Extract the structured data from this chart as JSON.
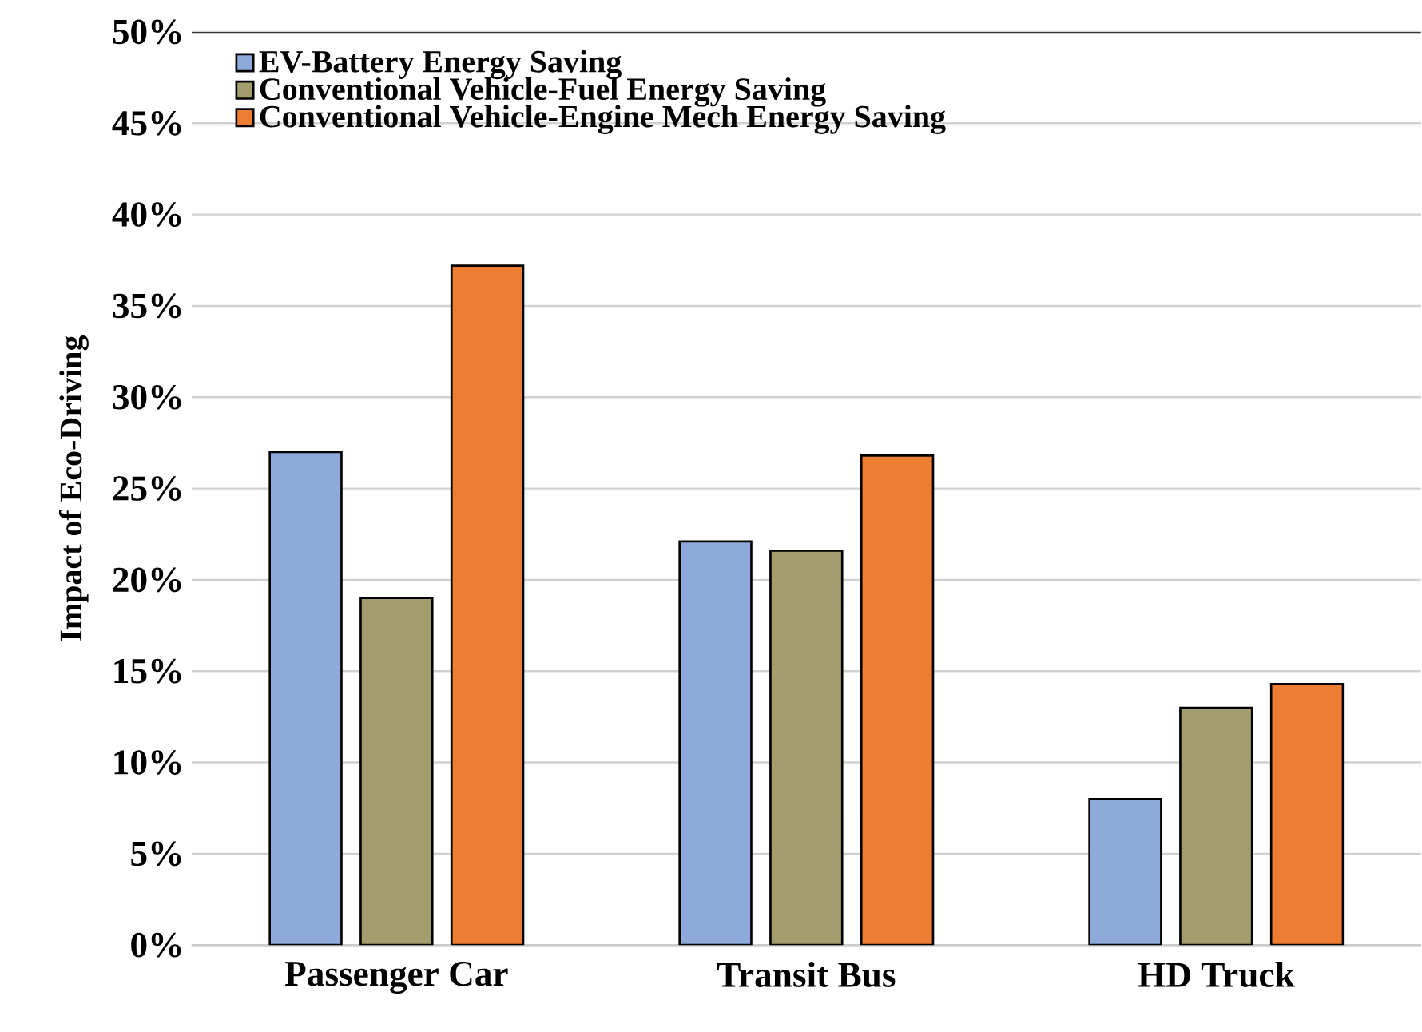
{
  "chart_data": {
    "type": "bar",
    "ylabel": "Impact of Eco-Driving",
    "categories": [
      "Passenger Car",
      "Transit Bus",
      "HD Truck"
    ],
    "series": [
      {
        "name": "EV-Battery Energy Saving",
        "color": "#8eaadb",
        "values": [
          27.0,
          22.1,
          8.0
        ]
      },
      {
        "name": "Conventional Vehicle-Fuel Energy Saving",
        "color": "#a39c6c",
        "values": [
          19.0,
          21.6,
          13.0
        ]
      },
      {
        "name": "Conventional Vehicle-Engine Mech  Energy Saving",
        "color": "#ed7d31",
        "values": [
          37.2,
          26.8,
          14.3
        ]
      }
    ],
    "ylim": [
      0,
      50
    ],
    "yticks": [
      {
        "value": 0,
        "label": "0%"
      },
      {
        "value": 5,
        "label": "5%"
      },
      {
        "value": 10,
        "label": "10%"
      },
      {
        "value": 15,
        "label": "15%"
      },
      {
        "value": 20,
        "label": "20%"
      },
      {
        "value": 25,
        "label": "25%"
      },
      {
        "value": 30,
        "label": "30%"
      },
      {
        "value": 35,
        "label": "35%"
      },
      {
        "value": 40,
        "label": "40%"
      },
      {
        "value": 45,
        "label": "45%"
      },
      {
        "value": 50,
        "label": "50%"
      }
    ],
    "grid": "y",
    "legend": "top left"
  }
}
